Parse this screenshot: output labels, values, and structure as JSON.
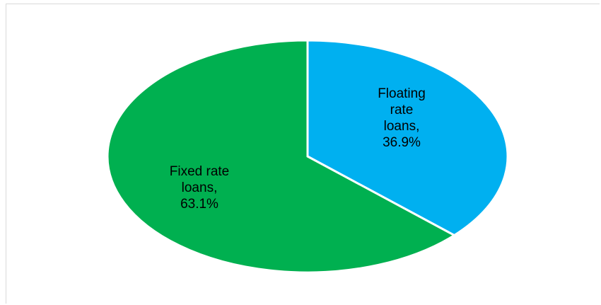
{
  "chart_data": {
    "type": "pie",
    "title": "",
    "slices": [
      {
        "label_lines": [
          "Floating",
          "rate",
          "loans,",
          "36.9%"
        ],
        "category": "Floating rate loans",
        "value": 36.9,
        "color": "#00b0f0"
      },
      {
        "label_lines": [
          "Fixed rate",
          "loans,",
          "63.1%"
        ],
        "category": "Fixed rate loans",
        "value": 63.1,
        "color": "#00b050"
      }
    ],
    "start_angle_deg": 0,
    "direction": "clockwise",
    "legend": "none"
  }
}
